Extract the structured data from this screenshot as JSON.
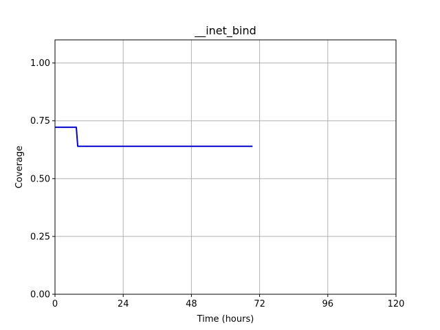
{
  "chart_data": {
    "type": "line",
    "title": "__inet_bind",
    "xlabel": "Time (hours)",
    "ylabel": "Coverage",
    "xlim": [
      0,
      120
    ],
    "ylim": [
      0,
      1.1
    ],
    "xticks": [
      0,
      24,
      48,
      72,
      96,
      120
    ],
    "yticks": [
      0.0,
      0.25,
      0.5,
      0.75,
      1.0
    ],
    "xtick_labels": [
      "0",
      "24",
      "48",
      "72",
      "96",
      "120"
    ],
    "ytick_labels": [
      "0.00",
      "0.25",
      "0.50",
      "0.75",
      "1.00"
    ],
    "grid": true,
    "series": [
      {
        "color": "#0000cc",
        "x": [
          0,
          7.5,
          8,
          69.5
        ],
        "y": [
          0.722,
          0.722,
          0.64,
          0.64
        ]
      }
    ]
  }
}
